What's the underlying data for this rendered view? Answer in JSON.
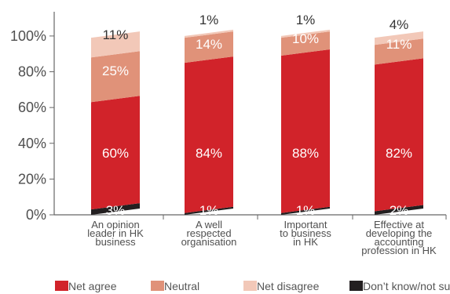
{
  "chart_data": {
    "type": "bar",
    "stacked": true,
    "title": "",
    "xlabel": "",
    "ylabel": "",
    "ylim": [
      0,
      100
    ],
    "yticks": [
      "0%",
      "20%",
      "40%",
      "60%",
      "80%",
      "100%"
    ],
    "grid": false,
    "legend_position": "bottom",
    "categories": [
      [
        "An opinion",
        "leader in HK",
        "business"
      ],
      [
        "A well",
        "respected",
        "organisation"
      ],
      [
        "Important",
        "to business",
        "in HK"
      ],
      [
        "Effective at",
        "developing the",
        "accounting",
        "profession in HK"
      ]
    ],
    "series": [
      {
        "name": "Don’t know/not sure",
        "color": "#231f20",
        "label_color": "#ffffff",
        "values": [
          3,
          1,
          1,
          2
        ],
        "labels": [
          "3%",
          "1%",
          "1%",
          "2%"
        ]
      },
      {
        "name": "Net agree",
        "color": "#d1232a",
        "label_color": "#ffffff",
        "values": [
          60,
          84,
          88,
          82
        ],
        "labels": [
          "60%",
          "84%",
          "88%",
          "82%"
        ]
      },
      {
        "name": "Neutral",
        "color": "#e09279",
        "label_color": "#ffffff",
        "values": [
          25,
          14,
          10,
          11
        ],
        "labels": [
          "25%",
          "14%",
          "10%",
          "11%"
        ]
      },
      {
        "name": "Net disagree",
        "color": "#f2c8b8",
        "label_color": "#333333",
        "values": [
          11,
          1,
          1,
          4
        ],
        "labels": [
          "11%",
          "1%",
          "1%",
          "4%"
        ]
      }
    ],
    "legend": [
      {
        "name": "Net agree",
        "color": "#d1232a"
      },
      {
        "name": "Neutral",
        "color": "#e09279"
      },
      {
        "name": "Net disagree",
        "color": "#f2c8b8"
      },
      {
        "name": "Don’t know/not sure",
        "color": "#231f20"
      }
    ],
    "colors": {
      "axis": "#666666",
      "text": "#4f4f4f"
    }
  }
}
